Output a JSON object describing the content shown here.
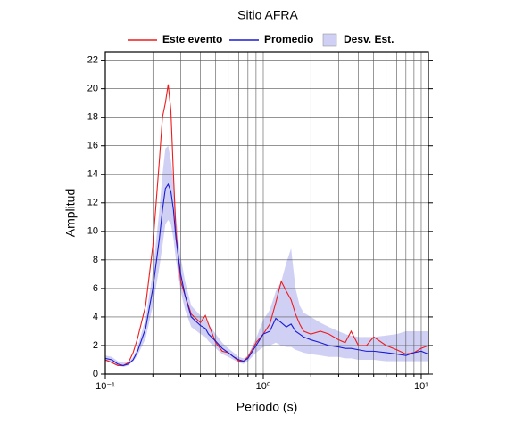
{
  "chart_data": {
    "type": "line",
    "title": "Sitio AFRA",
    "x_label": "Periodo (s)",
    "y_label": "Amplitud",
    "log_x": true,
    "grid": true,
    "xlim": [
      0.1,
      11.1
    ],
    "ylim": [
      0,
      22.6
    ],
    "xticks": [
      {
        "value": 0.1,
        "label": "10⁻¹"
      },
      {
        "value": 1,
        "label": "10⁰"
      },
      {
        "value": 10,
        "label": "10¹"
      }
    ],
    "xminor_ticks": [
      0.2,
      0.3,
      0.4,
      0.5,
      0.6,
      0.7,
      0.8,
      0.9,
      2,
      3,
      4,
      5,
      6,
      7,
      8,
      9
    ],
    "yticks": [
      0,
      2,
      4,
      6,
      8,
      10,
      12,
      14,
      16,
      18,
      20,
      22
    ],
    "x": [
      0.1,
      0.11,
      0.12,
      0.13,
      0.14,
      0.15,
      0.16,
      0.18,
      0.2,
      0.22,
      0.23,
      0.24,
      0.25,
      0.26,
      0.27,
      0.28,
      0.3,
      0.32,
      0.35,
      0.4,
      0.43,
      0.45,
      0.5,
      0.55,
      0.6,
      0.65,
      0.7,
      0.75,
      0.8,
      0.9,
      1.0,
      1.1,
      1.2,
      1.3,
      1.4,
      1.5,
      1.6,
      1.7,
      1.8,
      2.0,
      2.3,
      2.6,
      3.0,
      3.3,
      3.6,
      4.0,
      4.5,
      5.0,
      6,
      7,
      8,
      9,
      10,
      11.1
    ],
    "band": {
      "name": "Desv. Est.",
      "color": "#d0d0f5",
      "lower": [
        0.9,
        0.8,
        0.6,
        0.5,
        0.6,
        0.9,
        1.3,
        2.5,
        4.8,
        7.5,
        9.0,
        10.5,
        10.8,
        10.5,
        9.5,
        8.0,
        5.8,
        4.5,
        3.3,
        2.8,
        2.6,
        2.3,
        1.8,
        1.4,
        1.2,
        1.0,
        0.8,
        0.7,
        0.9,
        1.5,
        1.9,
        2.0,
        2.2,
        2.0,
        1.9,
        1.9,
        1.7,
        1.6,
        1.5,
        1.4,
        1.3,
        1.2,
        1.2,
        1.1,
        1.1,
        1.0,
        1.0,
        1.0,
        0.9,
        0.9,
        0.9,
        0.9,
        0.9,
        0.9
      ],
      "upper": [
        1.3,
        1.2,
        0.9,
        0.8,
        0.8,
        1.2,
        1.9,
        3.9,
        7.2,
        11.5,
        14.0,
        15.8,
        16.0,
        15.0,
        13.5,
        11.0,
        8.2,
        6.5,
        4.8,
        4.1,
        3.9,
        3.5,
        2.8,
        2.2,
        1.8,
        1.5,
        1.2,
        1.1,
        1.3,
        2.5,
        3.8,
        4.5,
        5.8,
        6.5,
        7.8,
        8.8,
        6.0,
        4.8,
        4.3,
        4.0,
        3.6,
        3.3,
        3.0,
        2.8,
        2.7,
        2.6,
        2.6,
        2.6,
        2.7,
        2.8,
        3.0,
        3.0,
        3.0,
        3.0
      ]
    },
    "series": [
      {
        "name": "Este evento",
        "color": "#ee1c1c",
        "values": [
          1.0,
          0.8,
          0.6,
          0.6,
          0.8,
          1.5,
          2.5,
          4.8,
          9,
          15,
          18,
          19,
          20.3,
          18.5,
          14,
          10,
          6.5,
          5.5,
          4.2,
          3.6,
          4.1,
          3.5,
          2.2,
          1.6,
          1.5,
          1.2,
          0.9,
          0.9,
          1.2,
          2.2,
          2.8,
          3.5,
          5.0,
          6.5,
          5.8,
          5.2,
          4.2,
          3.5,
          3.0,
          2.8,
          3.0,
          2.8,
          2.4,
          2.2,
          3.0,
          2.0,
          2.0,
          2.6,
          2.0,
          1.7,
          1.4,
          1.5,
          1.8,
          2.0
        ]
      },
      {
        "name": "Promedio",
        "color": "#1a1ad6",
        "values": [
          1.1,
          1.0,
          0.7,
          0.6,
          0.7,
          1.0,
          1.6,
          3.2,
          6.0,
          9.5,
          11.5,
          13.0,
          13.3,
          12.8,
          11.5,
          9.5,
          7.0,
          5.5,
          4.0,
          3.4,
          3.2,
          2.8,
          2.3,
          1.8,
          1.5,
          1.2,
          1.0,
          0.9,
          1.1,
          2.0,
          2.8,
          3.0,
          3.9,
          3.6,
          3.3,
          3.5,
          3.0,
          2.8,
          2.6,
          2.4,
          2.2,
          2.0,
          1.9,
          1.8,
          1.8,
          1.7,
          1.6,
          1.6,
          1.5,
          1.4,
          1.3,
          1.5,
          1.6,
          1.4
        ]
      }
    ]
  }
}
